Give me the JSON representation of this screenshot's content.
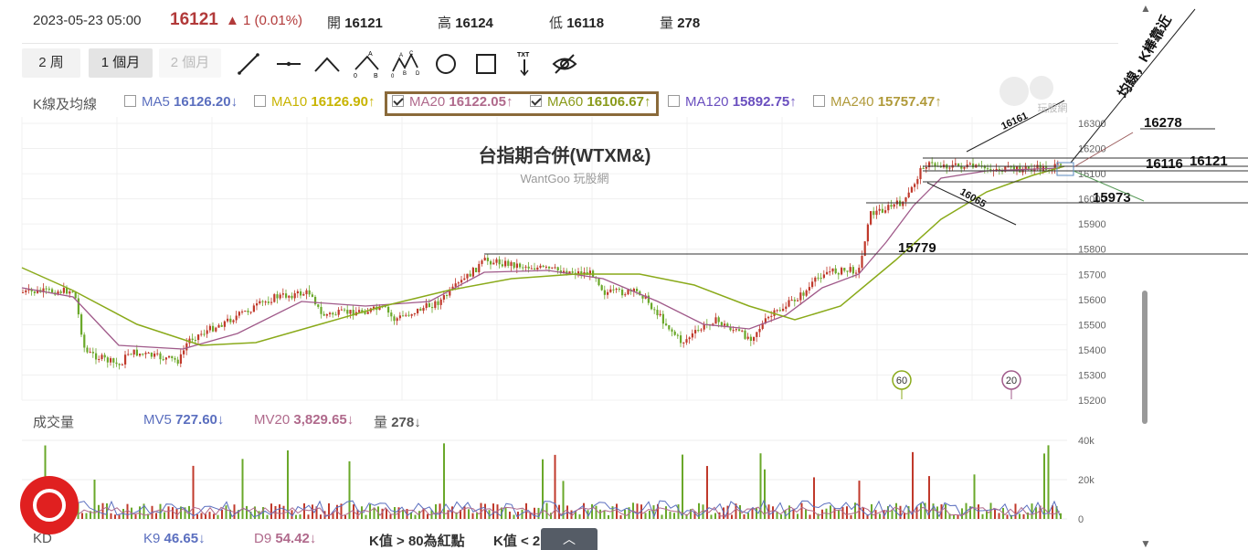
{
  "quote": {
    "datetime": "2023-05-23 05:00",
    "price": "16121",
    "change": "▲ 1 (0.01%)",
    "open_label": "開",
    "open": "16121",
    "high_label": "高",
    "high": "16124",
    "low_label": "低",
    "low": "16118",
    "volume_label": "量",
    "volume": "278"
  },
  "periods": [
    {
      "label": "2 周",
      "state": "normal"
    },
    {
      "label": "1 個月",
      "state": "active"
    },
    {
      "label": "2 個月",
      "state": "disabled"
    }
  ],
  "draw_tools": [
    "line-tool-icon",
    "horizontal-line-icon",
    "angle-line-icon",
    "ab-wave-icon",
    "abcd-wave-icon",
    "circle-tool-icon",
    "rectangle-tool-icon",
    "text-tool-icon",
    "hide-drawings-icon"
  ],
  "ma_panel": {
    "title": "K線及均線",
    "items": [
      {
        "name": "MA5",
        "value": "16126.20",
        "arrow": "↓",
        "checked": false,
        "color": "#5b6fbf"
      },
      {
        "name": "MA10",
        "value": "16126.90",
        "arrow": "↑",
        "checked": false,
        "color": "#c8b400"
      },
      {
        "name": "MA20",
        "value": "16122.05",
        "arrow": "↑",
        "checked": true,
        "color": "#b06a8c"
      },
      {
        "name": "MA60",
        "value": "16106.67",
        "arrow": "↑",
        "checked": true,
        "color": "#8a9a1a"
      },
      {
        "name": "MA120",
        "value": "15892.75",
        "arrow": "↑",
        "checked": false,
        "color": "#6a4fbf"
      },
      {
        "name": "MA240",
        "value": "15757.47",
        "arrow": "↑",
        "checked": false,
        "color": "#b09a3a"
      }
    ]
  },
  "chart_title": "台指期合併(WTXM&)",
  "watermark": "WantGoo 玩股網",
  "logo_text": "玩股網",
  "price_axis": [
    "16300",
    "16200",
    "16100",
    "16000",
    "15900",
    "15800",
    "15700",
    "15600",
    "15500",
    "15400",
    "15300",
    "15200"
  ],
  "annotations": {
    "level_16278": "16278",
    "level_16116": "16116",
    "level_16121": "16121",
    "level_15973": "15973",
    "level_15779": "15779",
    "label_16161": "16161",
    "label_16065": "16065",
    "diagonal_note": "均線，K棒靠近",
    "marker_60": "60",
    "marker_20": "20"
  },
  "volume_panel": {
    "title": "成交量",
    "mv5_label": "MV5",
    "mv5_value": "727.60",
    "mv5_arrow": "↓",
    "mv20_label": "MV20",
    "mv20_value": "3,829.65",
    "mv20_arrow": "↓",
    "vol_label": "量",
    "vol_value": "278",
    "vol_arrow": "↓",
    "axis": [
      "40k",
      "20k",
      "0"
    ]
  },
  "kd_panel": {
    "title": "KD",
    "k9_label": "K9",
    "k9_value": "46.65",
    "k9_arrow": "↓",
    "d9_label": "D9",
    "d9_value": "54.42",
    "d9_arrow": "↓",
    "rule1_a": "K值 > ",
    "rule1_b": "80",
    "rule1_c": "為紅點",
    "rule2": "K值 < 2"
  },
  "colors": {
    "up": "#c0392b",
    "down": "#6aa82a",
    "ma20": "#a05a8a",
    "ma60": "#8aaa1a",
    "price_red": "#b23a3a"
  }
}
